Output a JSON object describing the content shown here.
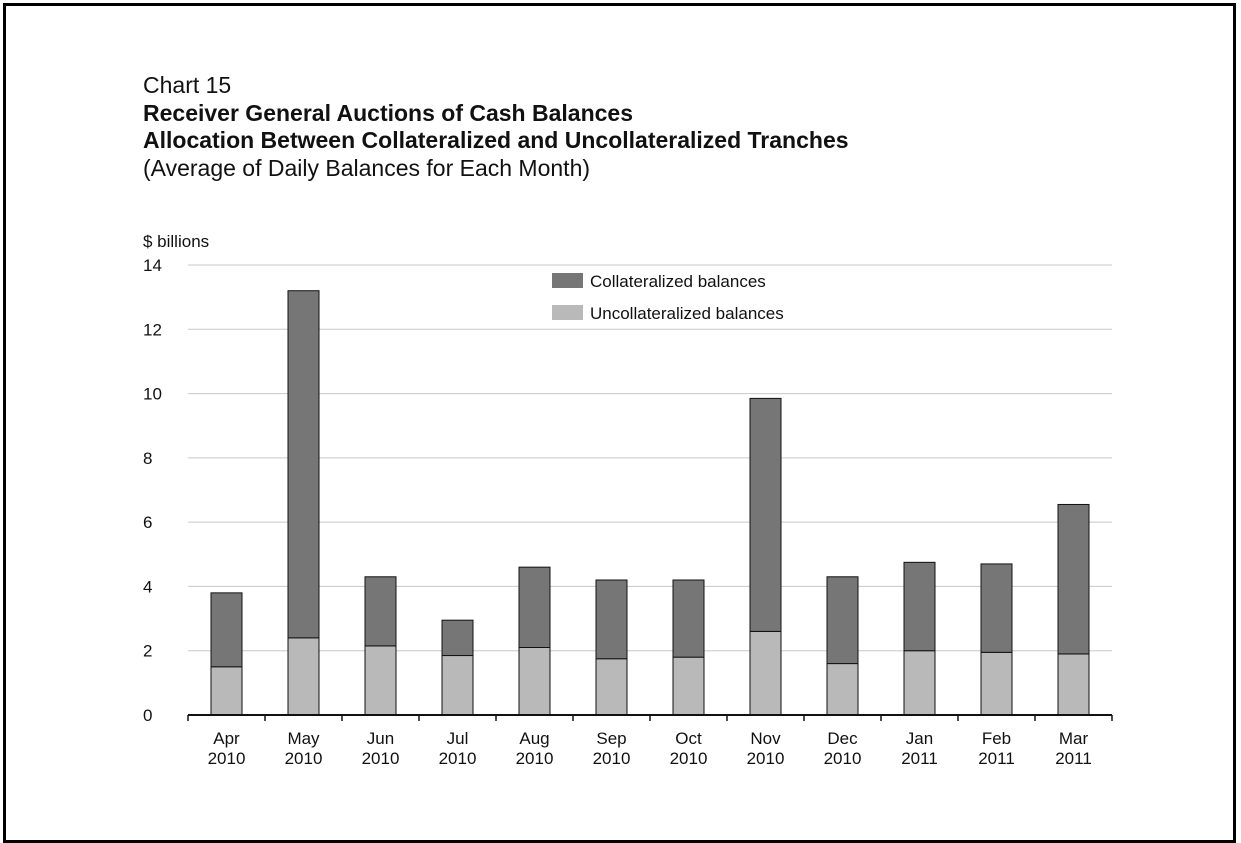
{
  "header": {
    "chart_number": "Chart 15",
    "title_line_1": "Receiver General Auctions of Cash Balances",
    "title_line_2": "Allocation Between Collateralized and Uncollateralized Tranches",
    "subtitle": "(Average of Daily Balances for Each Month)"
  },
  "colors": {
    "collateralized": "#767676",
    "uncollateralized": "#b9b9b9",
    "gridline": "#c8c8c8",
    "axis": "#111111"
  },
  "chart_data": {
    "type": "bar",
    "stacked": true,
    "title": "Receiver General Auctions of Cash Balances Allocation Between Collateralized and Uncollateralized Tranches",
    "subtitle": "(Average of Daily Balances for Each Month)",
    "ylabel": "$ billions",
    "xlabel": "",
    "ylim": [
      0,
      14
    ],
    "yticks": [
      0,
      2,
      4,
      6,
      8,
      10,
      12,
      14
    ],
    "grid": true,
    "legend_position": "top-center",
    "categories": [
      [
        "Apr",
        "2010"
      ],
      [
        "May",
        "2010"
      ],
      [
        "Jun",
        "2010"
      ],
      [
        "Jul",
        "2010"
      ],
      [
        "Aug",
        "2010"
      ],
      [
        "Sep",
        "2010"
      ],
      [
        "Oct",
        "2010"
      ],
      [
        "Nov",
        "2010"
      ],
      [
        "Dec",
        "2010"
      ],
      [
        "Jan",
        "2011"
      ],
      [
        "Feb",
        "2011"
      ],
      [
        "Mar",
        "2011"
      ]
    ],
    "series": [
      {
        "name": "Uncollateralized balances",
        "color": "#b9b9b9",
        "values": [
          1.5,
          2.4,
          2.15,
          1.85,
          2.1,
          1.75,
          1.8,
          2.6,
          1.6,
          2.0,
          1.95,
          1.9
        ]
      },
      {
        "name": "Collateralized balances",
        "color": "#767676",
        "values": [
          2.3,
          10.8,
          2.15,
          1.1,
          2.5,
          2.45,
          2.4,
          7.25,
          2.7,
          2.75,
          2.75,
          4.65
        ]
      }
    ],
    "legend": [
      "Collateralized balances",
      "Uncollateralized balances"
    ]
  }
}
